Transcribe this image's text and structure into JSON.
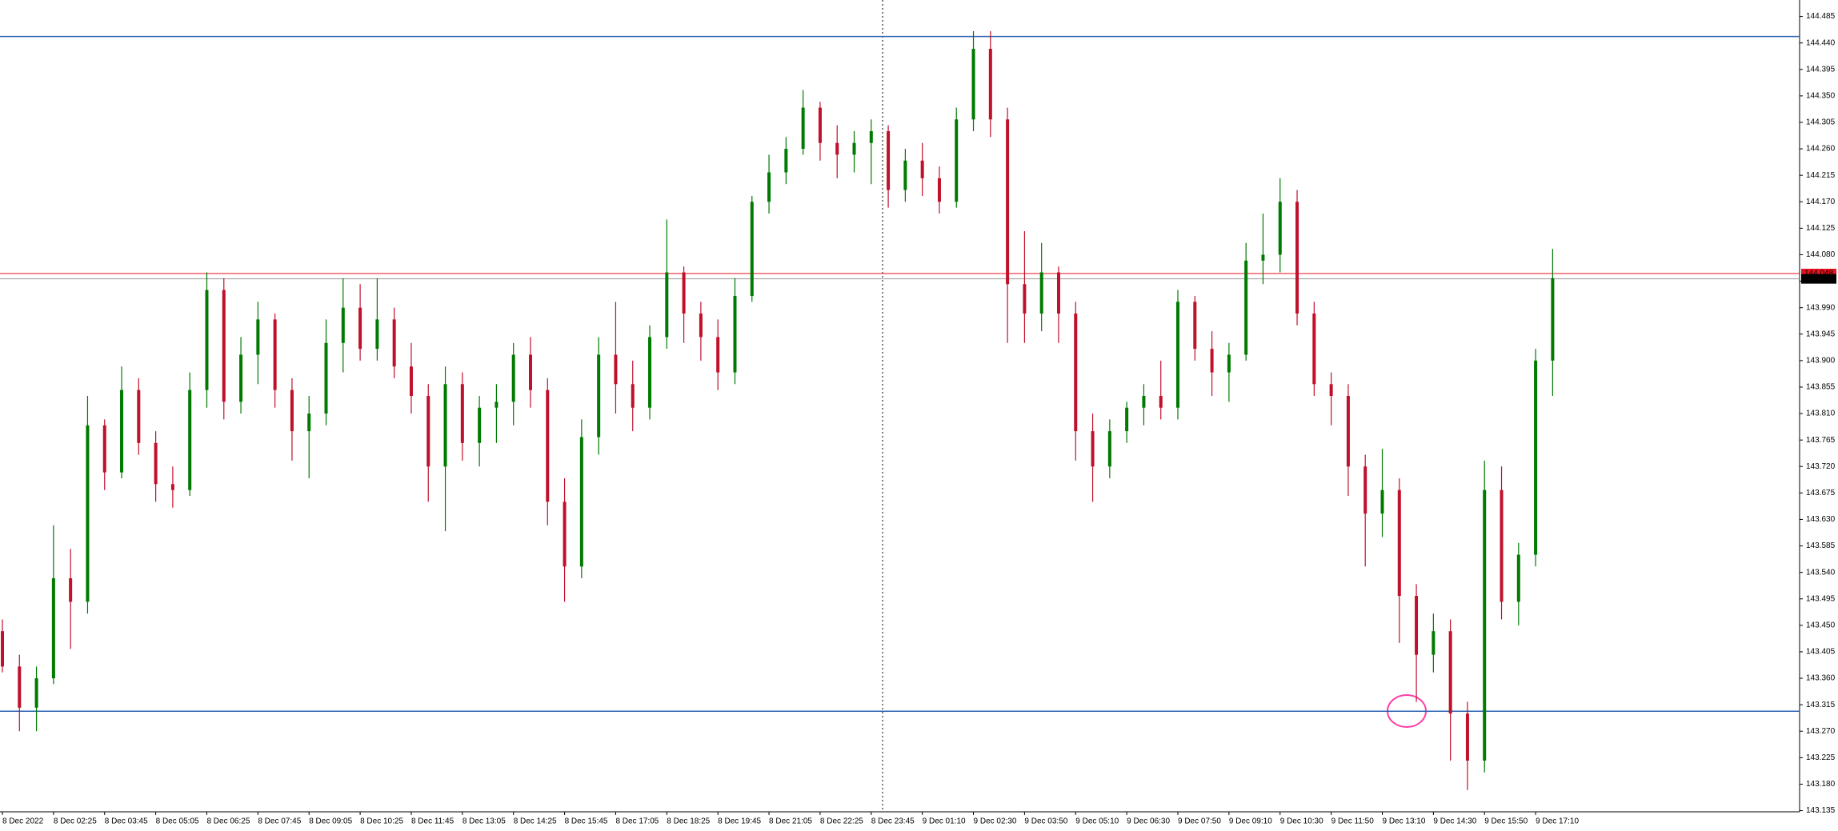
{
  "chart_data": {
    "type": "candlestick",
    "categories": [
      "8 Dec 2022",
      null,
      null,
      "8 Dec 02:25",
      null,
      null,
      "8 Dec 03:45",
      null,
      null,
      "8 Dec 05:05",
      null,
      null,
      "8 Dec 06:25",
      null,
      null,
      "8 Dec 07:45",
      null,
      null,
      "8 Dec 09:05",
      null,
      null,
      "8 Dec 10:25",
      null,
      null,
      "8 Dec 11:45",
      null,
      null,
      "8 Dec 13:05",
      null,
      null,
      "8 Dec 14:25",
      null,
      null,
      "8 Dec 15:45",
      null,
      null,
      "8 Dec 17:05",
      null,
      null,
      "8 Dec 18:25",
      null,
      null,
      "8 Dec 19:45",
      null,
      null,
      "8 Dec 21:05",
      null,
      null,
      "8 Dec 22:25",
      null,
      null,
      "8 Dec 23:45",
      null,
      null,
      "9 Dec 01:10",
      null,
      null,
      "9 Dec 02:30",
      null,
      null,
      "9 Dec 03:50",
      null,
      null,
      "9 Dec 05:10",
      null,
      null,
      "9 Dec 06:30",
      null,
      null,
      "9 Dec 07:50",
      null,
      null,
      "9 Dec 09:10",
      null,
      null,
      "9 Dec 10:30",
      null,
      null,
      "9 Dec 11:50",
      null,
      null,
      "9 Dec 13:10",
      null,
      null,
      "9 Dec 14:30",
      null,
      null,
      "9 Dec 15:50",
      null,
      null,
      "9 Dec 17:10",
      null
    ],
    "open": [
      143.44,
      143.38,
      143.31,
      143.36,
      143.53,
      143.49,
      143.79,
      143.71,
      143.85,
      143.76,
      143.69,
      143.68,
      143.85,
      144.02,
      143.83,
      143.91,
      143.97,
      143.85,
      143.78,
      143.81,
      143.93,
      143.99,
      143.92,
      143.97,
      143.89,
      143.84,
      143.72,
      143.86,
      143.76,
      143.82,
      143.83,
      143.91,
      143.85,
      143.66,
      143.55,
      143.77,
      143.91,
      143.86,
      143.82,
      143.94,
      144.05,
      143.98,
      143.94,
      143.88,
      144.01,
      144.17,
      144.22,
      144.26,
      144.33,
      144.27,
      144.25,
      144.27,
      144.29,
      144.19,
      144.24,
      144.21,
      144.17,
      144.31,
      144.43,
      144.31,
      144.03,
      143.98,
      144.05,
      143.98,
      143.78,
      143.72,
      143.78,
      143.82,
      143.84,
      143.82,
      144.0,
      143.92,
      143.88,
      143.91,
      144.07,
      144.08,
      144.17,
      143.98,
      143.86,
      143.84,
      143.72,
      143.64,
      143.68,
      143.5,
      143.4,
      143.44,
      143.3,
      143.22,
      143.68,
      143.49,
      143.57,
      143.9
    ],
    "high": [
      143.46,
      143.4,
      143.38,
      143.62,
      143.58,
      143.84,
      143.8,
      143.89,
      143.87,
      143.78,
      143.72,
      143.88,
      144.05,
      144.04,
      143.94,
      144.0,
      143.98,
      143.87,
      143.84,
      143.97,
      144.04,
      144.03,
      144.04,
      143.99,
      143.93,
      143.86,
      143.89,
      143.88,
      143.84,
      143.86,
      143.93,
      143.94,
      143.87,
      143.7,
      143.8,
      143.94,
      144.0,
      143.9,
      143.96,
      144.14,
      144.06,
      144.0,
      143.97,
      144.04,
      144.18,
      144.25,
      144.28,
      144.36,
      144.34,
      144.3,
      144.29,
      144.31,
      144.3,
      144.26,
      144.27,
      144.23,
      144.33,
      144.46,
      144.46,
      144.33,
      144.12,
      144.1,
      144.06,
      144.0,
      143.81,
      143.8,
      143.83,
      143.86,
      143.9,
      144.02,
      144.01,
      143.95,
      143.93,
      144.1,
      144.15,
      144.21,
      144.19,
      144.0,
      143.88,
      143.86,
      143.74,
      143.75,
      143.7,
      143.52,
      143.47,
      143.46,
      143.32,
      143.73,
      143.72,
      143.59,
      143.92,
      144.09
    ],
    "low": [
      143.37,
      143.27,
      143.27,
      143.35,
      143.41,
      143.47,
      143.68,
      143.7,
      143.74,
      143.66,
      143.65,
      143.67,
      143.82,
      143.8,
      143.81,
      143.86,
      143.82,
      143.73,
      143.7,
      143.79,
      143.88,
      143.9,
      143.9,
      143.87,
      143.81,
      143.66,
      143.61,
      143.73,
      143.72,
      143.76,
      143.79,
      143.82,
      143.62,
      143.49,
      143.53,
      143.74,
      143.81,
      143.78,
      143.8,
      143.92,
      143.93,
      143.9,
      143.85,
      143.86,
      144.0,
      144.15,
      144.2,
      144.25,
      144.24,
      144.21,
      144.22,
      144.2,
      144.16,
      144.17,
      144.18,
      144.15,
      144.16,
      144.29,
      144.28,
      143.93,
      143.93,
      143.95,
      143.93,
      143.73,
      143.66,
      143.7,
      143.76,
      143.79,
      143.8,
      143.8,
      143.9,
      143.84,
      143.83,
      143.9,
      144.03,
      144.05,
      143.96,
      143.84,
      143.79,
      143.67,
      143.55,
      143.6,
      143.42,
      143.32,
      143.37,
      143.22,
      143.17,
      143.2,
      143.46,
      143.45,
      143.55,
      143.84
    ],
    "close": [
      143.38,
      143.31,
      143.36,
      143.53,
      143.49,
      143.79,
      143.71,
      143.85,
      143.76,
      143.69,
      143.68,
      143.85,
      144.02,
      143.83,
      143.91,
      143.97,
      143.85,
      143.78,
      143.81,
      143.93,
      143.99,
      143.92,
      143.97,
      143.89,
      143.84,
      143.72,
      143.86,
      143.76,
      143.82,
      143.83,
      143.91,
      143.85,
      143.66,
      143.55,
      143.77,
      143.91,
      143.86,
      143.82,
      143.94,
      144.05,
      143.98,
      143.94,
      143.88,
      144.01,
      144.17,
      144.22,
      144.26,
      144.33,
      144.27,
      144.25,
      144.27,
      144.29,
      144.19,
      144.24,
      144.21,
      144.17,
      144.31,
      144.43,
      144.31,
      144.03,
      143.98,
      144.05,
      143.98,
      143.78,
      143.72,
      143.78,
      143.82,
      143.84,
      143.82,
      144.0,
      143.92,
      143.88,
      143.91,
      144.07,
      144.08,
      144.17,
      143.98,
      143.86,
      143.84,
      143.72,
      143.64,
      143.68,
      143.5,
      143.4,
      143.44,
      143.3,
      143.22,
      143.68,
      143.49,
      143.57,
      143.9,
      144.04
    ],
    "up_color": "#007a00",
    "down_color": "#c0102a",
    "ylim": [
      143.133,
      144.513
    ],
    "yticks": [
      143.135,
      {
        "value": 143.18,
        "label": "143.180"
      },
      143.225,
      {
        "value": 143.27,
        "label": "143.270"
      },
      143.315,
      {
        "value": 143.36,
        "label": "143.360"
      },
      143.405,
      {
        "value": 143.45,
        "label": "143.450"
      },
      143.495,
      {
        "value": 143.54,
        "label": "143.540"
      },
      143.585,
      {
        "value": 143.63,
        "label": "143.630"
      },
      143.675,
      {
        "value": 143.72,
        "label": "143.720"
      },
      143.765,
      {
        "value": 143.81,
        "label": "143.810"
      },
      143.855,
      {
        "value": 143.9,
        "label": "143.900"
      },
      143.945,
      {
        "value": 143.99,
        "label": "143.990"
      },
      144.035,
      {
        "value": 144.08,
        "label": "144.080"
      },
      144.125,
      {
        "value": 144.17,
        "label": "144.170"
      },
      144.215,
      {
        "value": 144.26,
        "label": "144.260"
      },
      144.305,
      {
        "value": 144.35,
        "label": "144.350"
      },
      144.395,
      {
        "value": 144.44,
        "label": "144.440"
      },
      144.485
    ],
    "hlines": [
      {
        "value": 144.451,
        "color": "#2a62b0"
      },
      {
        "value": 143.304,
        "color": "#2a62b0"
      }
    ],
    "price_lines": [
      {
        "value": 144.048,
        "color": "#e8121e"
      },
      {
        "value": 144.039,
        "color": "#000000"
      }
    ]
  }
}
